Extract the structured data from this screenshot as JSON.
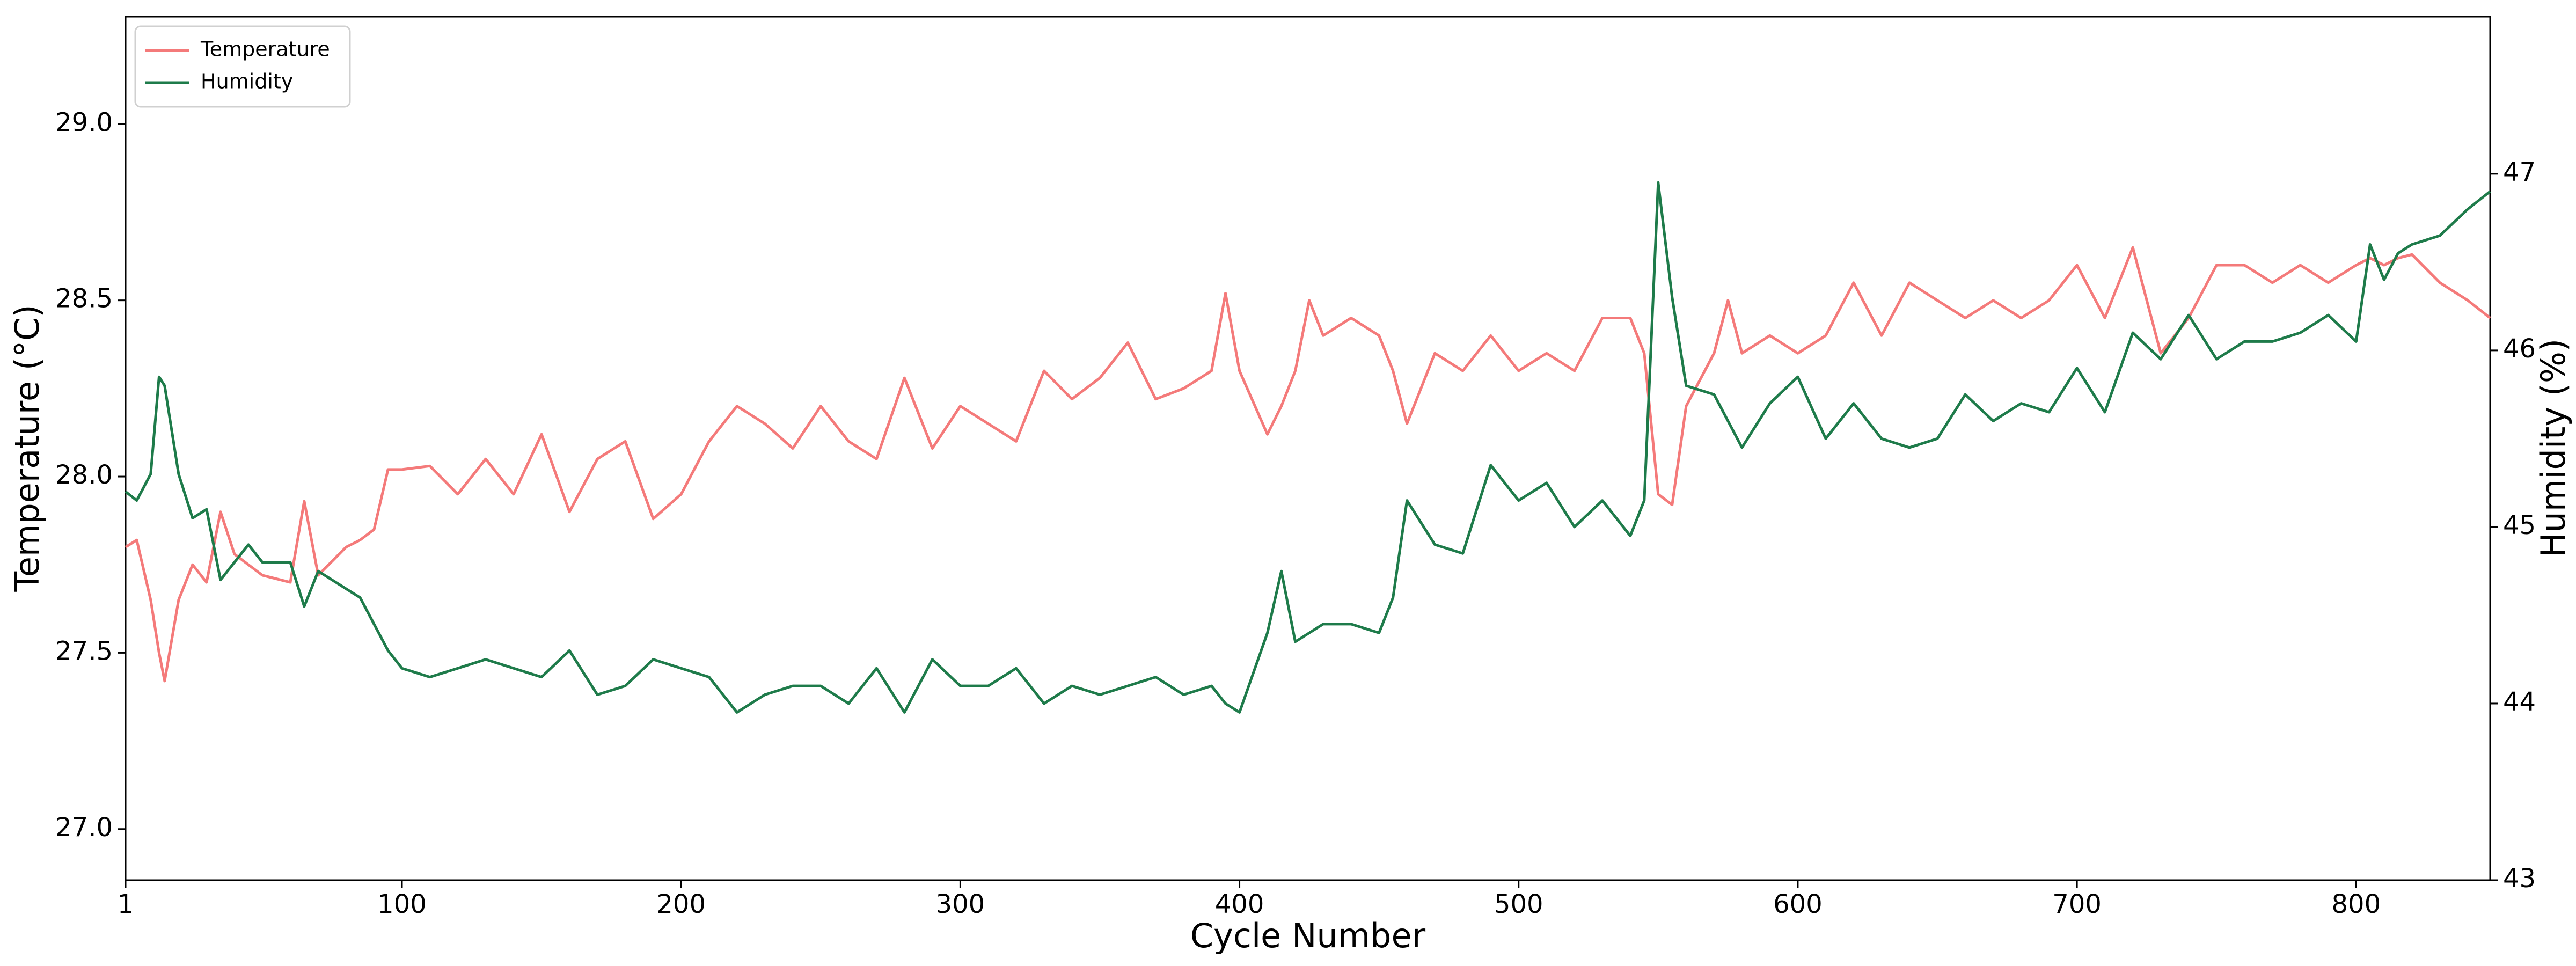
{
  "chart_data": {
    "type": "line",
    "x_label": "Cycle Number",
    "y_label": "Temperature (°C)",
    "y2_label": "Humidity (%)",
    "x": [
      1,
      5,
      10,
      13,
      15,
      20,
      25,
      30,
      35,
      40,
      45,
      50,
      60,
      65,
      70,
      80,
      85,
      90,
      95,
      100,
      110,
      120,
      130,
      140,
      150,
      160,
      170,
      180,
      190,
      200,
      210,
      220,
      230,
      240,
      250,
      260,
      270,
      280,
      290,
      300,
      310,
      320,
      330,
      340,
      350,
      360,
      370,
      380,
      390,
      395,
      400,
      410,
      415,
      420,
      425,
      430,
      440,
      450,
      455,
      460,
      470,
      480,
      490,
      500,
      510,
      520,
      530,
      540,
      545,
      550,
      555,
      560,
      570,
      575,
      580,
      590,
      600,
      610,
      620,
      630,
      640,
      650,
      660,
      670,
      680,
      690,
      700,
      710,
      720,
      730,
      740,
      750,
      760,
      770,
      780,
      790,
      800,
      805,
      810,
      815,
      820,
      830,
      840,
      848
    ],
    "series": [
      {
        "name": "Temperature",
        "color": "#f47a7a",
        "axis": "y",
        "values": [
          27.8,
          27.82,
          27.65,
          27.5,
          27.42,
          27.65,
          27.75,
          27.7,
          27.9,
          27.78,
          27.75,
          27.72,
          27.7,
          27.93,
          27.72,
          27.8,
          27.82,
          27.85,
          28.02,
          28.02,
          28.03,
          27.95,
          28.05,
          27.95,
          28.12,
          27.9,
          28.05,
          28.1,
          27.88,
          27.95,
          28.1,
          28.2,
          28.15,
          28.08,
          28.2,
          28.1,
          28.05,
          28.28,
          28.08,
          28.2,
          28.15,
          28.1,
          28.3,
          28.22,
          28.28,
          28.38,
          28.22,
          28.25,
          28.3,
          28.52,
          28.3,
          28.12,
          28.2,
          28.3,
          28.5,
          28.4,
          28.45,
          28.4,
          28.3,
          28.15,
          28.35,
          28.3,
          28.4,
          28.3,
          28.35,
          28.3,
          28.45,
          28.45,
          28.35,
          27.95,
          27.92,
          28.2,
          28.35,
          28.5,
          28.35,
          28.4,
          28.35,
          28.4,
          28.55,
          28.4,
          28.55,
          28.5,
          28.45,
          28.5,
          28.45,
          28.5,
          28.6,
          28.45,
          28.65,
          28.35,
          28.45,
          28.6,
          28.6,
          28.55,
          28.6,
          28.55,
          28.6,
          28.62,
          28.6,
          28.62,
          28.63,
          28.55,
          28.5,
          28.45
        ]
      },
      {
        "name": "Humidity",
        "color": "#1e7b4a",
        "axis": "y2",
        "values": [
          45.2,
          45.15,
          45.3,
          45.85,
          45.8,
          45.3,
          45.05,
          45.1,
          44.7,
          44.8,
          44.9,
          44.8,
          44.8,
          44.55,
          44.75,
          44.65,
          44.6,
          44.45,
          44.3,
          44.2,
          44.15,
          44.2,
          44.25,
          44.2,
          44.15,
          44.3,
          44.05,
          44.1,
          44.25,
          44.2,
          44.15,
          43.95,
          44.05,
          44.1,
          44.1,
          44.0,
          44.2,
          43.95,
          44.25,
          44.1,
          44.1,
          44.2,
          44.0,
          44.1,
          44.05,
          44.1,
          44.15,
          44.05,
          44.1,
          44.0,
          43.95,
          44.4,
          44.75,
          44.35,
          44.4,
          44.45,
          44.45,
          44.4,
          44.6,
          45.15,
          44.9,
          44.85,
          45.35,
          45.15,
          45.25,
          45.0,
          45.15,
          44.95,
          45.15,
          46.95,
          46.3,
          45.8,
          45.75,
          45.6,
          45.45,
          45.7,
          45.85,
          45.5,
          45.7,
          45.5,
          45.45,
          45.5,
          45.75,
          45.6,
          45.7,
          45.65,
          45.9,
          45.65,
          46.1,
          45.95,
          46.2,
          45.95,
          46.05,
          46.05,
          46.1,
          46.2,
          46.05,
          46.6,
          46.4,
          46.55,
          46.6,
          46.65,
          46.8,
          46.9
        ]
      }
    ],
    "xlim": [
      1,
      848
    ],
    "xticks": [
      1,
      100,
      200,
      300,
      400,
      500,
      600,
      700,
      800
    ],
    "ylim": [
      26.855,
      29.305
    ],
    "yticks": [
      {
        "value": 27,
        "label": "27.0"
      },
      27.5,
      {
        "value": 28,
        "label": "28.0"
      },
      28.5,
      {
        "value": 29,
        "label": "29.0"
      }
    ],
    "y2lim": [
      43,
      47.89
    ],
    "y2ticks": [
      43,
      44,
      45,
      46,
      47
    ],
    "grid": false,
    "legend": "upper left"
  }
}
